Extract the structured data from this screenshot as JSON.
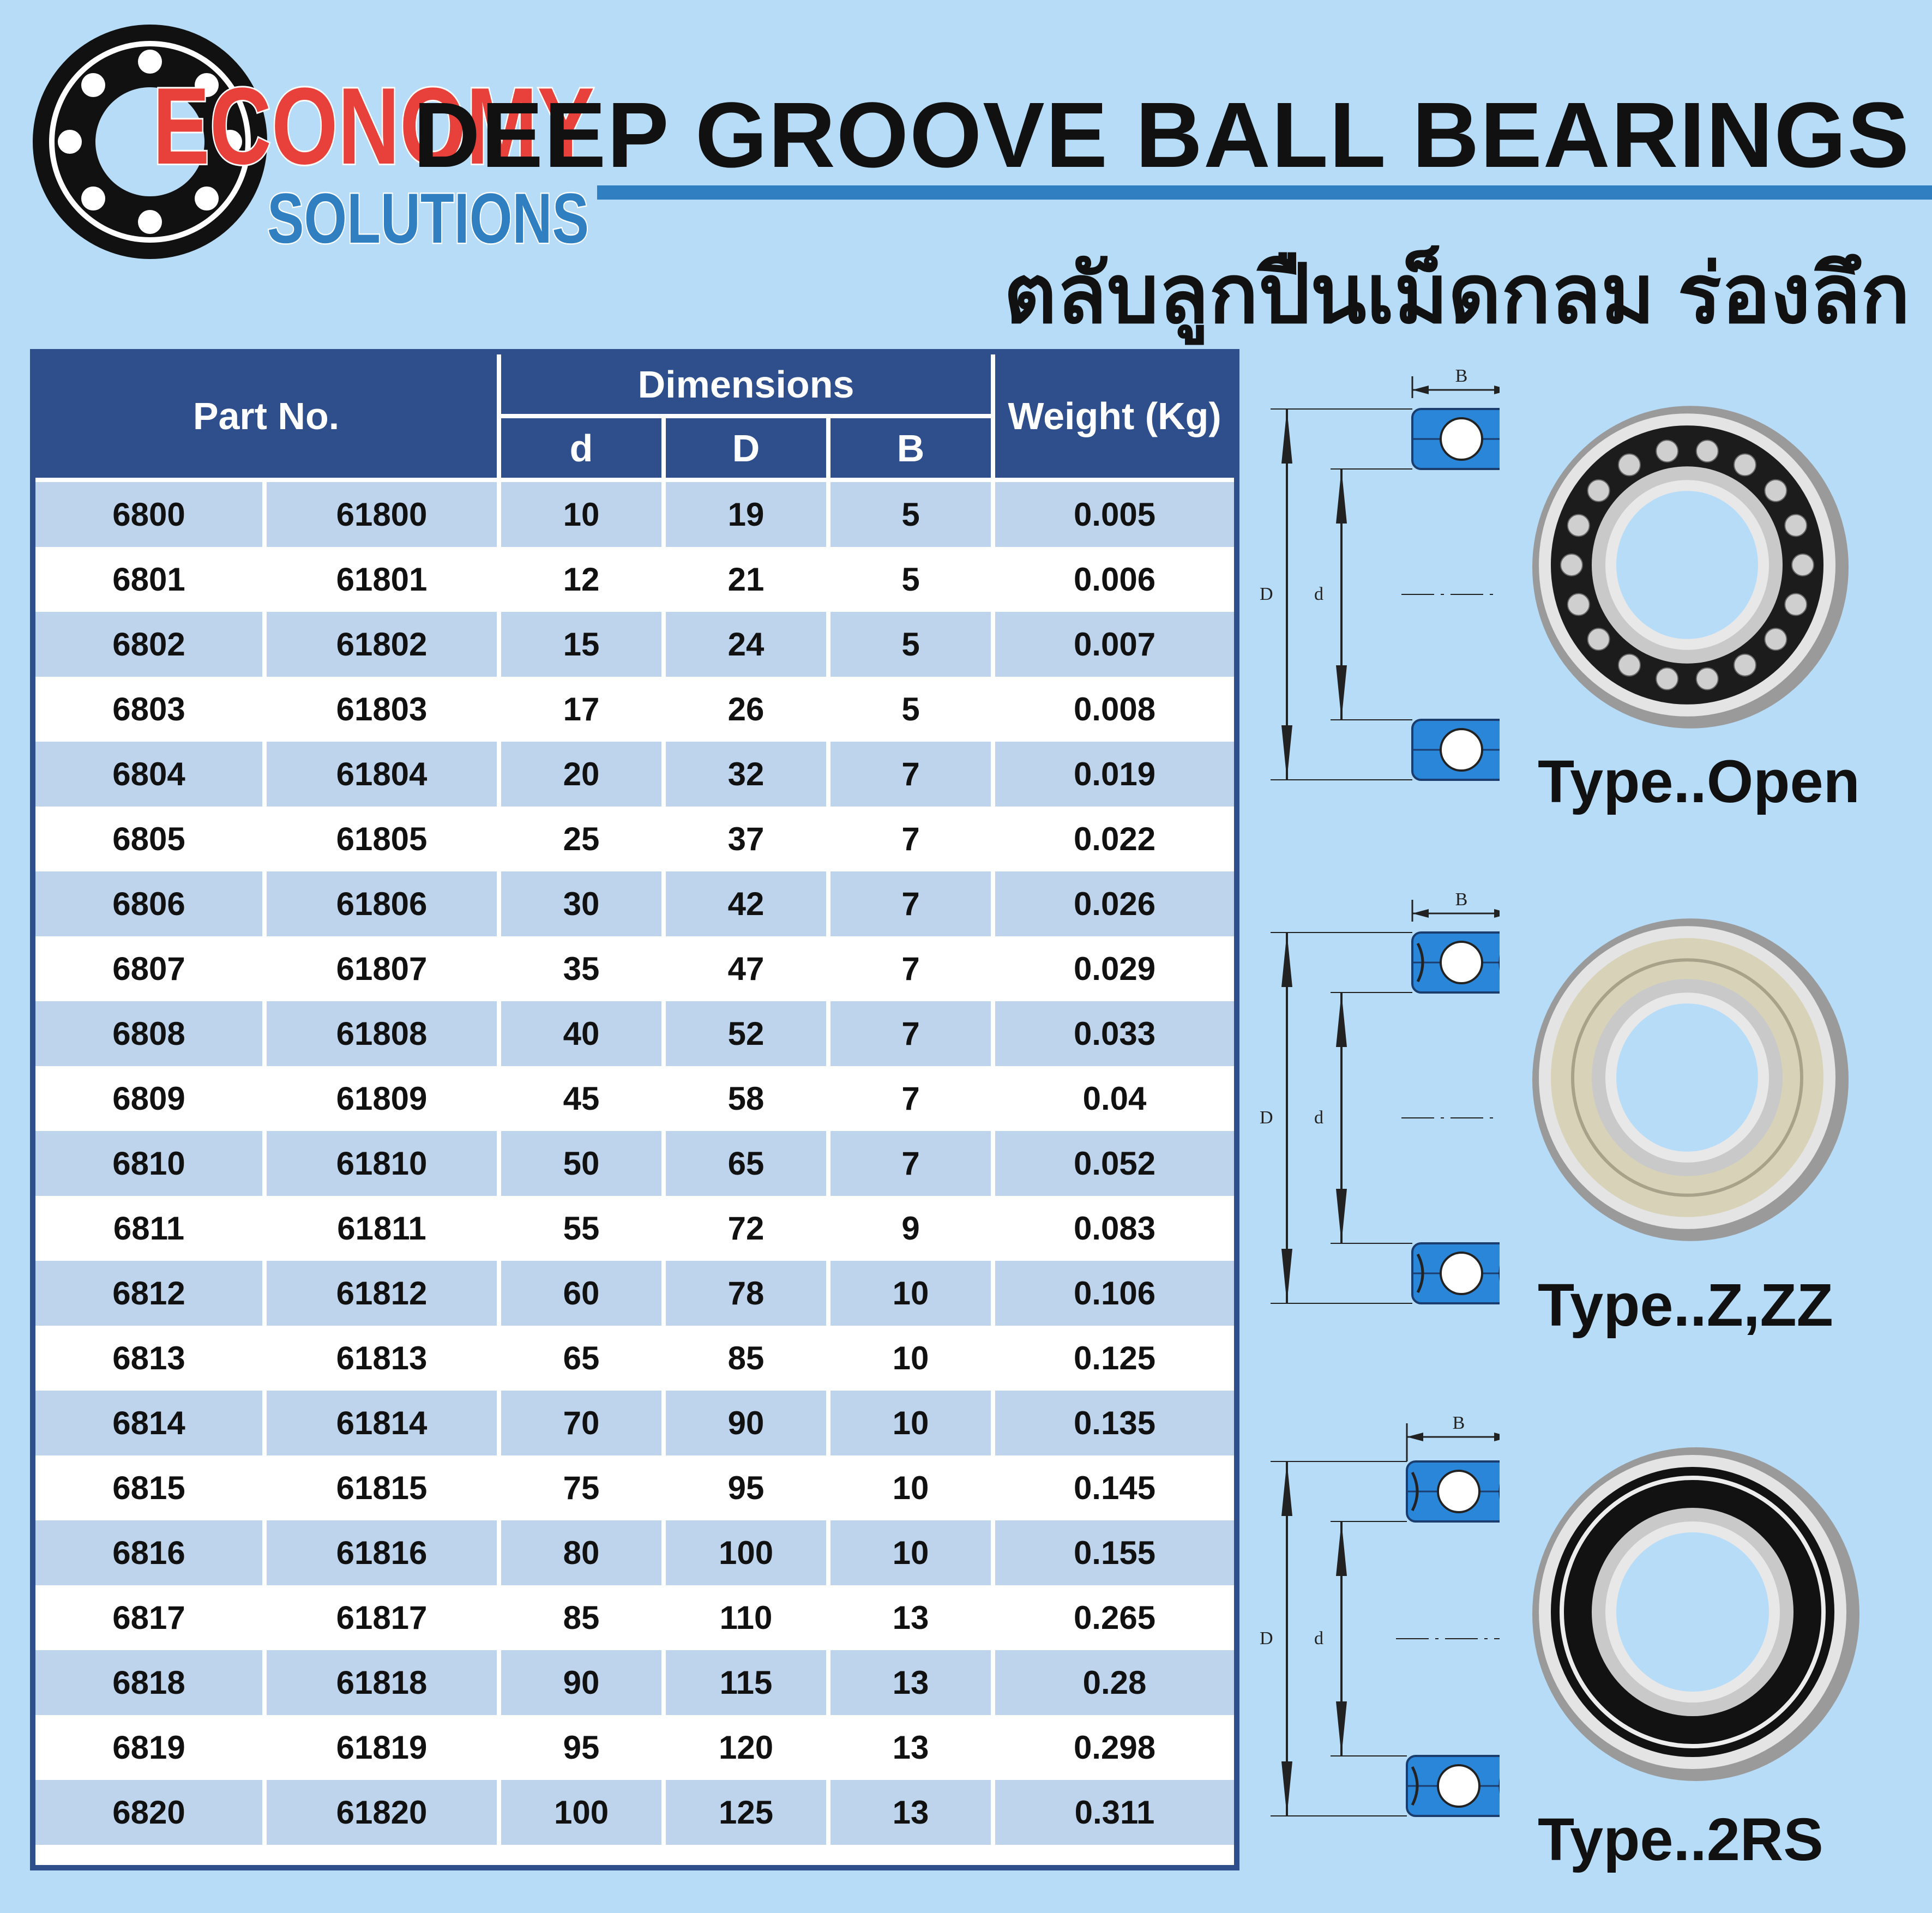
{
  "logo": {
    "line1": "ECONOMY",
    "line2": "SOLUTIONS"
  },
  "header": {
    "title": "DEEP GROOVE BALL BEARINGS",
    "thai_title": "ตลับลูกปืนเม็ดกลม ร่องลึก"
  },
  "table": {
    "part_header": "Part No.",
    "dimensions_header": "Dimensions",
    "weight_header": "Weight (Kg)",
    "dim_cols": [
      "d",
      "D",
      "B"
    ],
    "rows": [
      [
        "6800",
        "61800",
        "10",
        "19",
        "5",
        "0.005"
      ],
      [
        "6801",
        "61801",
        "12",
        "21",
        "5",
        "0.006"
      ],
      [
        "6802",
        "61802",
        "15",
        "24",
        "5",
        "0.007"
      ],
      [
        "6803",
        "61803",
        "17",
        "26",
        "5",
        "0.008"
      ],
      [
        "6804",
        "61804",
        "20",
        "32",
        "7",
        "0.019"
      ],
      [
        "6805",
        "61805",
        "25",
        "37",
        "7",
        "0.022"
      ],
      [
        "6806",
        "61806",
        "30",
        "42",
        "7",
        "0.026"
      ],
      [
        "6807",
        "61807",
        "35",
        "47",
        "7",
        "0.029"
      ],
      [
        "6808",
        "61808",
        "40",
        "52",
        "7",
        "0.033"
      ],
      [
        "6809",
        "61809",
        "45",
        "58",
        "7",
        "0.04"
      ],
      [
        "6810",
        "61810",
        "50",
        "65",
        "7",
        "0.052"
      ],
      [
        "6811",
        "61811",
        "55",
        "72",
        "9",
        "0.083"
      ],
      [
        "6812",
        "61812",
        "60",
        "78",
        "10",
        "0.106"
      ],
      [
        "6813",
        "61813",
        "65",
        "85",
        "10",
        "0.125"
      ],
      [
        "6814",
        "61814",
        "70",
        "90",
        "10",
        "0.135"
      ],
      [
        "6815",
        "61815",
        "75",
        "95",
        "10",
        "0.145"
      ],
      [
        "6816",
        "61816",
        "80",
        "100",
        "10",
        "0.155"
      ],
      [
        "6817",
        "61817",
        "85",
        "110",
        "13",
        "0.265"
      ],
      [
        "6818",
        "61818",
        "90",
        "115",
        "13",
        "0.28"
      ],
      [
        "6819",
        "61819",
        "95",
        "120",
        "13",
        "0.298"
      ],
      [
        "6820",
        "61820",
        "100",
        "125",
        "13",
        "0.311"
      ]
    ]
  },
  "diagram_labels": {
    "B": "B",
    "D": "D",
    "d": "d"
  },
  "types": [
    {
      "label": "Type..Open",
      "style": "open"
    },
    {
      "label": "Type..Z,ZZ",
      "style": "shield"
    },
    {
      "label": "Type..2RS",
      "style": "rubber"
    }
  ],
  "colors": {
    "navy": "#2e4e8c",
    "row_alt": "#bdd4ec",
    "background": "#b6dcf7",
    "logo_red": "#e8403a",
    "logo_blue": "#2f7fc1"
  }
}
